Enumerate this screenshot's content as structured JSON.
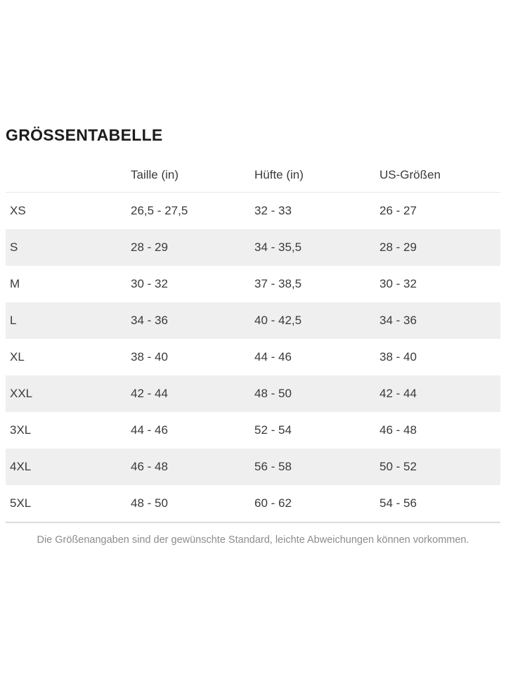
{
  "page": {
    "title": "GRÖSSENTABELLE",
    "footnote": "Die Größenangaben sind der gewünschte Standard, leichte Abweichungen können vorkommen."
  },
  "table": {
    "columns": [
      "",
      "Taille (in)",
      "Hüfte (in)",
      "US-Größen"
    ],
    "rows": [
      [
        "XS",
        "26,5 - 27,5",
        "32 - 33",
        "26 - 27"
      ],
      [
        "S",
        "28 - 29",
        "34 - 35,5",
        "28 - 29"
      ],
      [
        "M",
        "30 - 32",
        "37 - 38,5",
        "30 - 32"
      ],
      [
        "L",
        "34 - 36",
        "40 - 42,5",
        "34 - 36"
      ],
      [
        "XL",
        "38 - 40",
        "44 - 46",
        "38 - 40"
      ],
      [
        "XXL",
        "42 - 44",
        "48 - 50",
        "42 - 44"
      ],
      [
        "3XL",
        "44 - 46",
        "52 - 54",
        "46 - 48"
      ],
      [
        "4XL",
        "46 - 48",
        "56 - 58",
        "50 - 52"
      ],
      [
        "5XL",
        "48 - 50",
        "60 - 62",
        "54 - 56"
      ]
    ]
  },
  "colors": {
    "stripe": "#efefef",
    "border_top": "#e7e7e7",
    "border_bottom": "#dcdcdc",
    "text": "#3a3a3a",
    "title_text": "#1c1c1c",
    "footnote_text": "#8c8c8c",
    "background": "#ffffff"
  }
}
